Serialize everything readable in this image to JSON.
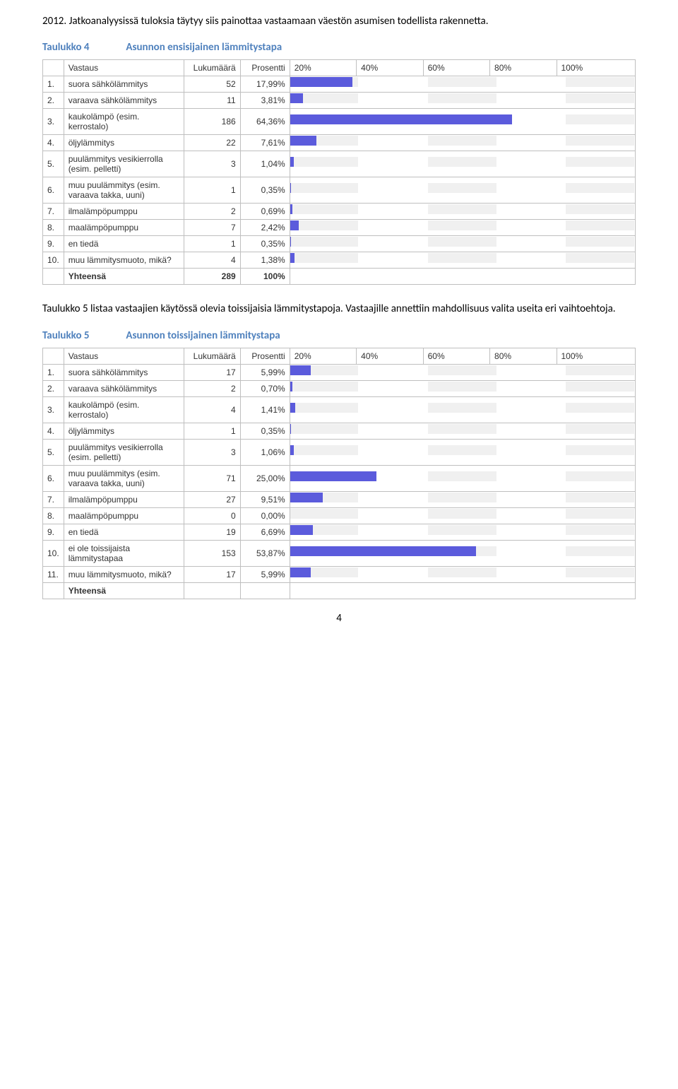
{
  "intro": "2012. Jatkoanalyysissä tuloksia täytyy siis painottaa vastaamaan väestön asumisen todellista rakennetta.",
  "table4": {
    "caption_num": "Taulukko 4",
    "caption_title": "Asunnon ensisijainen lämmitystapa",
    "headers": {
      "ans": "Vastaus",
      "cnt": "Lukumäärä",
      "pct": "Prosentti"
    },
    "chart_ticks": [
      "20%",
      "40%",
      "60%",
      "80%",
      "100%"
    ],
    "rows": [
      {
        "idx": "1.",
        "ans": "suora sähkölämmitys",
        "cnt": "52",
        "pct": "17,99%",
        "bar": 17.99
      },
      {
        "idx": "2.",
        "ans": "varaava sähkölämmitys",
        "cnt": "11",
        "pct": "3,81%",
        "bar": 3.81
      },
      {
        "idx": "3.",
        "ans": "kaukolämpö (esim. kerrostalo)",
        "cnt": "186",
        "pct": "64,36%",
        "bar": 64.36
      },
      {
        "idx": "4.",
        "ans": "öljylämmitys",
        "cnt": "22",
        "pct": "7,61%",
        "bar": 7.61
      },
      {
        "idx": "5.",
        "ans": "puulämmitys vesikierrolla (esim. pelletti)",
        "cnt": "3",
        "pct": "1,04%",
        "bar": 1.04
      },
      {
        "idx": "6.",
        "ans": "muu puulämmitys (esim. varaava takka, uuni)",
        "cnt": "1",
        "pct": "0,35%",
        "bar": 0.35
      },
      {
        "idx": "7.",
        "ans": "ilmalämpöpumppu",
        "cnt": "2",
        "pct": "0,69%",
        "bar": 0.69
      },
      {
        "idx": "8.",
        "ans": "maalämpöpumppu",
        "cnt": "7",
        "pct": "2,42%",
        "bar": 2.42
      },
      {
        "idx": "9.",
        "ans": "en tiedä",
        "cnt": "1",
        "pct": "0,35%",
        "bar": 0.35
      },
      {
        "idx": "10.",
        "ans": "muu lämmitysmuoto, mikä?",
        "cnt": "4",
        "pct": "1,38%",
        "bar": 1.38
      }
    ],
    "total": {
      "label": "Yhteensä",
      "cnt": "289",
      "pct": "100%"
    }
  },
  "mid_para": "Taulukko 5 listaa vastaajien käytössä olevia toissijaisia lämmitystapoja. Vastaajille annettiin mahdollisuus valita useita eri vaihtoehtoja.",
  "table5": {
    "caption_num": "Taulukko 5",
    "caption_title": "Asunnon toissijainen lämmitystapa",
    "headers": {
      "ans": "Vastaus",
      "cnt": "Lukumäärä",
      "pct": "Prosentti"
    },
    "chart_ticks": [
      "20%",
      "40%",
      "60%",
      "80%",
      "100%"
    ],
    "rows": [
      {
        "idx": "1.",
        "ans": "suora sähkölämmitys",
        "cnt": "17",
        "pct": "5,99%",
        "bar": 5.99
      },
      {
        "idx": "2.",
        "ans": "varaava sähkölämmitys",
        "cnt": "2",
        "pct": "0,70%",
        "bar": 0.7
      },
      {
        "idx": "3.",
        "ans": "kaukolämpö (esim. kerrostalo)",
        "cnt": "4",
        "pct": "1,41%",
        "bar": 1.41
      },
      {
        "idx": "4.",
        "ans": "öljylämmitys",
        "cnt": "1",
        "pct": "0,35%",
        "bar": 0.35
      },
      {
        "idx": "5.",
        "ans": "puulämmitys vesikierrolla (esim. pelletti)",
        "cnt": "3",
        "pct": "1,06%",
        "bar": 1.06
      },
      {
        "idx": "6.",
        "ans": "muu puulämmitys (esim. varaava takka, uuni)",
        "cnt": "71",
        "pct": "25,00%",
        "bar": 25.0
      },
      {
        "idx": "7.",
        "ans": "ilmalämpöpumppu",
        "cnt": "27",
        "pct": "9,51%",
        "bar": 9.51
      },
      {
        "idx": "8.",
        "ans": "maalämpöpumppu",
        "cnt": "0",
        "pct": "0,00%",
        "bar": 0.0
      },
      {
        "idx": "9.",
        "ans": "en tiedä",
        "cnt": "19",
        "pct": "6,69%",
        "bar": 6.69
      },
      {
        "idx": "10.",
        "ans": "ei ole toissijaista lämmitystapaa",
        "cnt": "153",
        "pct": "53,87%",
        "bar": 53.87
      },
      {
        "idx": "11.",
        "ans": "muu lämmitysmuoto, mikä?",
        "cnt": "17",
        "pct": "5,99%",
        "bar": 5.99
      }
    ],
    "total": {
      "label": "Yhteensä",
      "cnt": "",
      "pct": ""
    }
  },
  "page_number": "4",
  "chart": {
    "bar_color": "#5b5bdc",
    "seg_alt": "#f0f0f0",
    "seg_plain": "#ffffff"
  }
}
